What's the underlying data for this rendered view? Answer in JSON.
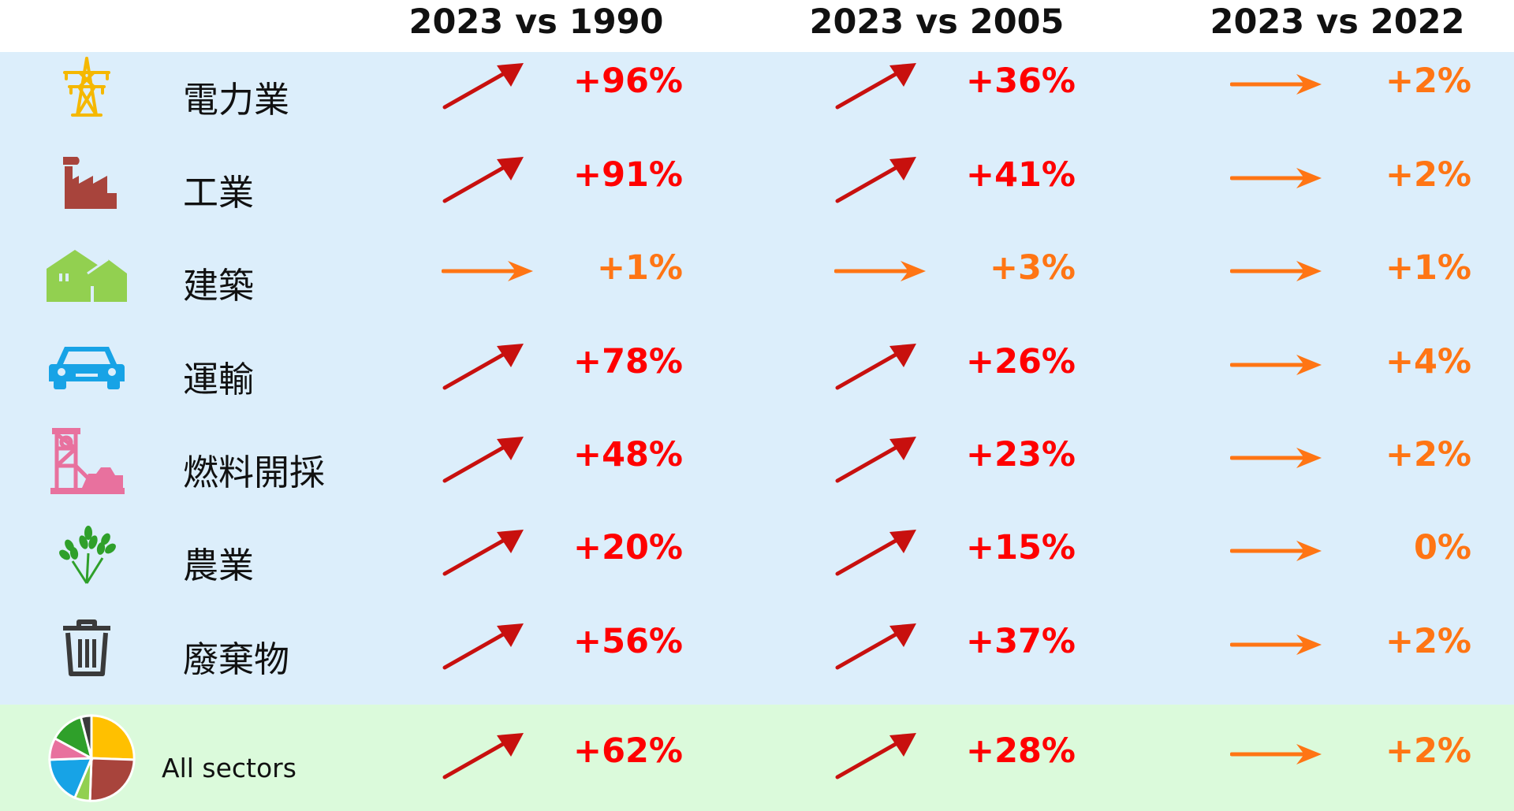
{
  "colors": {
    "up_arrow": "#c8100e",
    "up_text": "#ff0000",
    "flat": "#ff7514",
    "band_sectors": "#dceefb",
    "band_total": "#dbfadb"
  },
  "chart_data": {
    "type": "table",
    "title": "",
    "columns": [
      "2023 vs 1990",
      "2023 vs 2005",
      "2023 vs 2022"
    ],
    "rows": [
      {
        "label": "電力業",
        "icon": "power-pylon-icon",
        "values": [
          "+96%",
          "+36%",
          "+2%"
        ],
        "trend": [
          "up",
          "up",
          "flat"
        ]
      },
      {
        "label": "工業",
        "icon": "factory-icon",
        "values": [
          "+91%",
          "+41%",
          "+2%"
        ],
        "trend": [
          "up",
          "up",
          "flat"
        ]
      },
      {
        "label": "建築",
        "icon": "houses-icon",
        "values": [
          "+1%",
          "+3%",
          "+1%"
        ],
        "trend": [
          "flat",
          "flat",
          "flat"
        ]
      },
      {
        "label": "運輸",
        "icon": "car-icon",
        "values": [
          "+78%",
          "+26%",
          "+4%"
        ],
        "trend": [
          "up",
          "up",
          "flat"
        ]
      },
      {
        "label": "燃料開採",
        "icon": "mine-tower-icon",
        "values": [
          "+48%",
          "+23%",
          "+2%"
        ],
        "trend": [
          "up",
          "up",
          "flat"
        ]
      },
      {
        "label": "農業",
        "icon": "wheat-icon",
        "values": [
          "+20%",
          "+15%",
          "0%"
        ],
        "trend": [
          "up",
          "up",
          "flat"
        ]
      },
      {
        "label": "廢棄物",
        "icon": "trash-bin-icon",
        "values": [
          "+56%",
          "+37%",
          "+2%"
        ],
        "trend": [
          "up",
          "up",
          "flat"
        ]
      },
      {
        "label": "All sectors",
        "icon": "pie-chart-icon",
        "values": [
          "+62%",
          "+28%",
          "+2%"
        ],
        "trend": [
          "up",
          "up",
          "flat"
        ]
      }
    ]
  }
}
